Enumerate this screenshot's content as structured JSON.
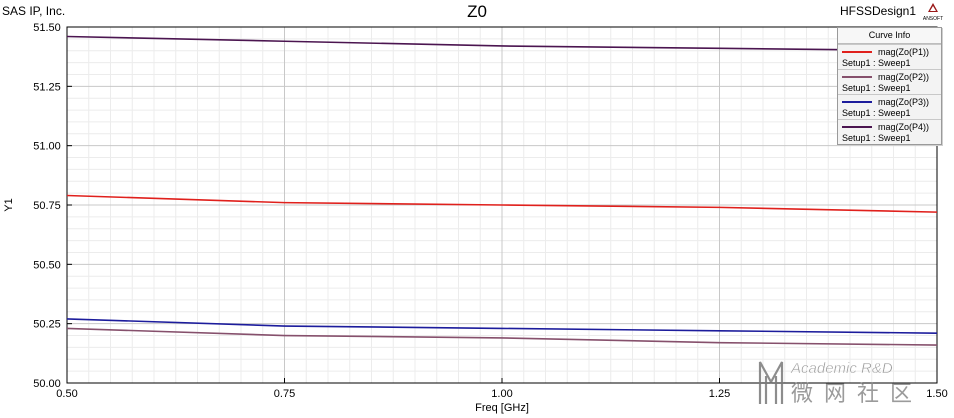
{
  "header": {
    "company": "SAS IP, Inc.",
    "title": "Z0",
    "design": "HFSSDesign1",
    "logo_text": "ANSOFT"
  },
  "legend": {
    "title": "Curve Info",
    "entries": [
      {
        "name": "mag(Zo(P1))",
        "setup": "Setup1 : Sweep1",
        "color": "#e0201c"
      },
      {
        "name": "mag(Zo(P2))",
        "setup": "Setup1 : Sweep1",
        "color": "#86506c"
      },
      {
        "name": "mag(Zo(P3))",
        "setup": "Setup1 : Sweep1",
        "color": "#1c1c9c"
      },
      {
        "name": "mag(Zo(P4))",
        "setup": "Setup1 : Sweep1",
        "color": "#4b1550"
      }
    ]
  },
  "watermark": {
    "line1": "Academic R&D",
    "line2": "微 网 社 区"
  },
  "chart_data": {
    "type": "line",
    "title": "Z0",
    "xlabel": "Freq [GHz]",
    "ylabel": "Y1",
    "xlim": [
      0.5,
      1.5
    ],
    "ylim": [
      50.0,
      51.5
    ],
    "x_ticks": [
      "0.50",
      "0.75",
      "1.00",
      "1.25",
      "1.50"
    ],
    "y_ticks": [
      "50.00",
      "50.25",
      "50.50",
      "50.75",
      "51.00",
      "51.25",
      "51.50"
    ],
    "grid": true,
    "legend_position": "top-right",
    "x": [
      0.5,
      0.75,
      1.0,
      1.25,
      1.5
    ],
    "series": [
      {
        "name": "mag(Zo(P1))",
        "color": "#e0201c",
        "values": [
          50.79,
          50.76,
          50.75,
          50.74,
          50.72
        ]
      },
      {
        "name": "mag(Zo(P2))",
        "color": "#86506c",
        "values": [
          50.23,
          50.2,
          50.19,
          50.17,
          50.16
        ]
      },
      {
        "name": "mag(Zo(P3))",
        "color": "#1c1c9c",
        "values": [
          50.27,
          50.24,
          50.23,
          50.22,
          50.21
        ]
      },
      {
        "name": "mag(Zo(P4))",
        "color": "#4b1550",
        "values": [
          51.46,
          51.44,
          51.42,
          51.41,
          51.4
        ]
      }
    ]
  }
}
